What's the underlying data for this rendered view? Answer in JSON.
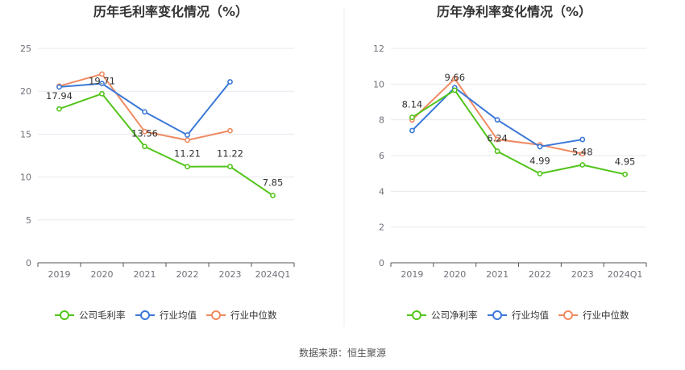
{
  "colors": {
    "company": "#52c41a",
    "industry_avg": "#3b78d8",
    "industry_median": "#f08a62",
    "grid": "#e6e8ef",
    "axis": "#555555",
    "divider": "#eeeeee"
  },
  "legend": {
    "gross_company": "公司毛利率",
    "net_company": "公司净利率",
    "industry_avg": "行业均值",
    "industry_median": "行业中位数"
  },
  "source_text": "数据来源：恒生聚源",
  "chart_data": [
    {
      "type": "line",
      "title": "历年毛利率变化情况（%）",
      "categories": [
        "2019",
        "2020",
        "2021",
        "2022",
        "2023",
        "2024Q1"
      ],
      "ylim": [
        0,
        25
      ],
      "yticks": [
        "0",
        "5",
        "10",
        "15",
        "20",
        "25"
      ],
      "grid": true,
      "legend_position": "bottom",
      "series": [
        {
          "name": "公司毛利率",
          "values": [
            17.94,
            19.71,
            13.56,
            11.21,
            11.22,
            7.85
          ],
          "labels": [
            "17.94",
            "19.71",
            "13.56",
            "11.21",
            "11.22",
            "7.85"
          ]
        },
        {
          "name": "行业均值",
          "values": [
            20.5,
            20.9,
            17.6,
            14.9,
            21.1,
            null
          ]
        },
        {
          "name": "行业中位数",
          "values": [
            20.6,
            22.0,
            15.3,
            14.3,
            15.4,
            null
          ]
        }
      ]
    },
    {
      "type": "line",
      "title": "历年净利率变化情况（%）",
      "categories": [
        "2019",
        "2020",
        "2021",
        "2022",
        "2023",
        "2024Q1"
      ],
      "ylim": [
        0,
        12
      ],
      "yticks": [
        "0",
        "2",
        "4",
        "6",
        "8",
        "10",
        "12"
      ],
      "grid": true,
      "legend_position": "bottom",
      "series": [
        {
          "name": "公司净利率",
          "values": [
            8.14,
            9.66,
            6.24,
            4.99,
            5.48,
            4.95
          ],
          "labels": [
            "8.14",
            "9.66",
            "6.24",
            "4.99",
            "5.48",
            "4.95"
          ]
        },
        {
          "name": "行业均值",
          "values": [
            7.4,
            9.8,
            8.0,
            6.5,
            6.9,
            null
          ]
        },
        {
          "name": "行业中位数",
          "values": [
            8.0,
            10.3,
            6.9,
            6.6,
            6.1,
            null
          ]
        }
      ]
    }
  ]
}
